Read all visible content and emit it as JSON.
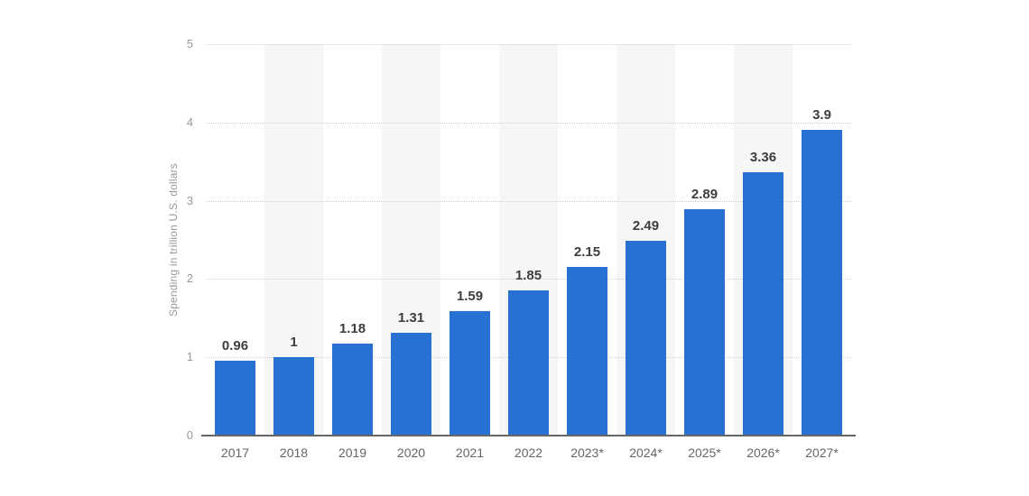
{
  "chart_data": {
    "type": "bar",
    "title": "",
    "ylabel": "Spending in trillion U.S. dollars",
    "xlabel": "",
    "categories": [
      "2017",
      "2018",
      "2019",
      "2020",
      "2021",
      "2022",
      "2023*",
      "2024*",
      "2025*",
      "2026*",
      "2027*"
    ],
    "values": [
      0.96,
      1,
      1.18,
      1.31,
      1.59,
      1.85,
      2.15,
      2.49,
      2.89,
      3.36,
      3.9
    ],
    "value_labels": [
      "0.96",
      "1",
      "1.18",
      "1.31",
      "1.59",
      "1.85",
      "2.15",
      "2.49",
      "2.89",
      "3.36",
      "3.9"
    ],
    "ylim": [
      0,
      5
    ],
    "yticks": [
      0,
      1,
      2,
      3,
      4,
      5
    ],
    "grid": true,
    "gridline_style": "dotted",
    "legend_position": "none",
    "colors": {
      "bar": "#2671d2",
      "band": "#f6f6f6",
      "gridline": "#cfcfcf",
      "axis_line": "#666666",
      "value_label": "#3d3d3d",
      "x_tick_label": "#666666",
      "y_tick_label": "#999999",
      "y_axis_title": "#999999",
      "background": "#ffffff"
    },
    "band_pattern": "alternate category columns shaded, starting with second column"
  }
}
